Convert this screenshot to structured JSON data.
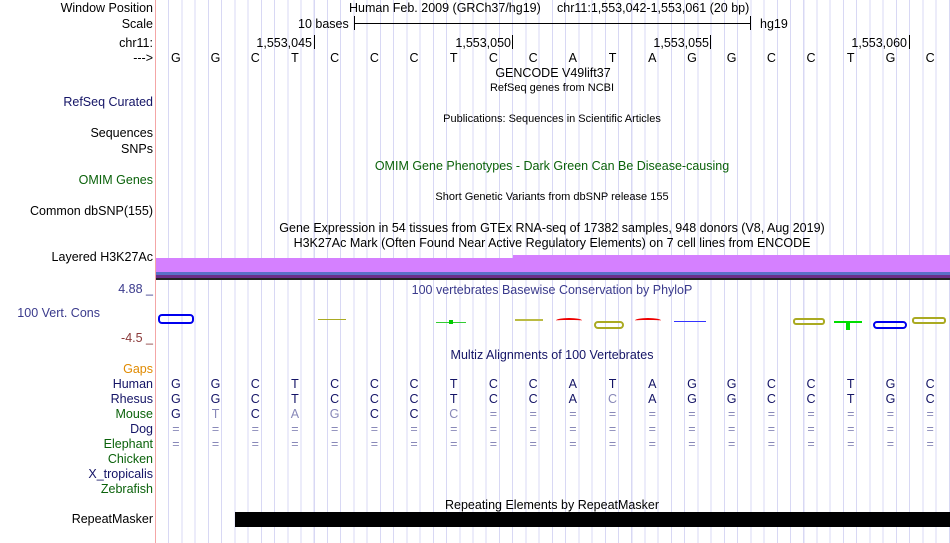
{
  "labels": {
    "window_position": "Window Position",
    "scale": "Scale",
    "chrom": "chr11:",
    "strand": "--->",
    "refseq_curated": "RefSeq Curated",
    "sequences": "Sequences",
    "snps": "SNPs",
    "omim_genes": "OMIM Genes",
    "common_dbsnp": "Common dbSNP(155)",
    "layered_h3k27ac": "Layered H3K27Ac",
    "cons_max": "4.88 _",
    "cons_label": "100 Vert. Cons",
    "cons_min": "-4.5 _",
    "gaps": "Gaps",
    "repeatmasker": "RepeatMasker"
  },
  "header": {
    "assembly": "Human Feb. 2009 (GRCh37/hg19)",
    "position": "chr11:1,553,042-1,553,061 (20 bp)",
    "scale_text": "10 bases",
    "scale_db": "hg19"
  },
  "ruler_ticks": [
    "1,553,045",
    "1,553,050",
    "1,553,055",
    "1,553,060"
  ],
  "track_titles": {
    "gencode": "GENCODE V49lift37",
    "refseq": "RefSeq genes from NCBI",
    "publications": "Publications: Sequences in Scientific Articles",
    "omim": "OMIM Gene Phenotypes - Dark Green Can Be Disease-causing",
    "dbsnp": "Short Genetic Variants from dbSNP release 155",
    "gtex": "Gene Expression in 54 tissues from GTEx RNA-seq of 17382 samples, 948 donors (V8, Aug 2019)",
    "h3k27ac": "H3K27Ac Mark (Often Found Near Active Regulatory Elements) on 7 cell lines from ENCODE",
    "phylop": "100 vertebrates Basewise Conservation by PhyloP",
    "multiz": "Multiz Alignments of 100 Vertebrates",
    "repeatmasker": "Repeating Elements by RepeatMasker"
  },
  "sequence": "GGCTCCCTCCATAGGCCTGC",
  "alignments": [
    {
      "species": "Human",
      "color": "#141466",
      "bases": "GGCTCCCTCCATAGGCCTGC",
      "faint": []
    },
    {
      "species": "Rhesus",
      "color": "#141466",
      "bases": "GGCTCCCTCCACAGGCCTGC",
      "faint": [
        11
      ]
    },
    {
      "species": "Mouse",
      "color": "#0b620b",
      "bases": "GTCAGCCC============",
      "faint": [
        1,
        3,
        4,
        7
      ]
    },
    {
      "species": "Dog",
      "color": "#141466",
      "bases": "====================",
      "faint": []
    },
    {
      "species": "Elephant",
      "color": "#0b620b",
      "bases": "====================",
      "faint": []
    },
    {
      "species": "Chicken",
      "color": "#0b620b",
      "bases": "",
      "faint": []
    },
    {
      "species": "X_tropicalis",
      "color": "#141466",
      "bases": "",
      "faint": []
    },
    {
      "species": "Zebrafish",
      "color": "#0b620b",
      "bases": "",
      "faint": []
    }
  ],
  "colors": {
    "gaps": "#e08a00",
    "h3k27ac": "#d580ff",
    "repeat": "#000000",
    "cons_max": "#3a3a8c",
    "cons_min": "#8b3a3a"
  }
}
